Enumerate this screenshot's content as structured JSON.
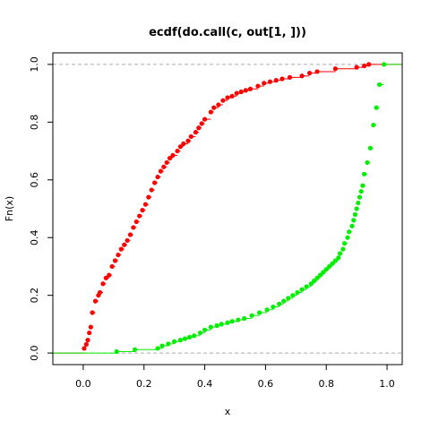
{
  "chart_data": {
    "type": "scatter",
    "title": "ecdf(do.call(c, out[1, ]))",
    "xlabel": "x",
    "ylabel": "Fn(x)",
    "xlim": [
      -0.1,
      1.05
    ],
    "ylim": [
      -0.04,
      1.04
    ],
    "xticks": [
      "0.0",
      "0.2",
      "0.4",
      "0.6",
      "0.8",
      "1.0"
    ],
    "yticks": [
      "0.0",
      "0.2",
      "0.4",
      "0.6",
      "0.8",
      "1.0"
    ],
    "reference_lines_y": [
      0,
      1
    ],
    "series": [
      {
        "color": "#ff0000",
        "points": [
          [
            0.003,
            0.016
          ],
          [
            0.01,
            0.03
          ],
          [
            0.015,
            0.045
          ],
          [
            0.02,
            0.07
          ],
          [
            0.025,
            0.09
          ],
          [
            0.03,
            0.14
          ],
          [
            0.04,
            0.18
          ],
          [
            0.05,
            0.2
          ],
          [
            0.055,
            0.21
          ],
          [
            0.065,
            0.24
          ],
          [
            0.075,
            0.26
          ],
          [
            0.085,
            0.27
          ],
          [
            0.095,
            0.3
          ],
          [
            0.105,
            0.32
          ],
          [
            0.115,
            0.34
          ],
          [
            0.125,
            0.36
          ],
          [
            0.135,
            0.375
          ],
          [
            0.145,
            0.39
          ],
          [
            0.155,
            0.41
          ],
          [
            0.165,
            0.435
          ],
          [
            0.175,
            0.455
          ],
          [
            0.185,
            0.475
          ],
          [
            0.195,
            0.495
          ],
          [
            0.205,
            0.515
          ],
          [
            0.215,
            0.54
          ],
          [
            0.225,
            0.565
          ],
          [
            0.235,
            0.59
          ],
          [
            0.245,
            0.61
          ],
          [
            0.255,
            0.63
          ],
          [
            0.265,
            0.645
          ],
          [
            0.275,
            0.66
          ],
          [
            0.285,
            0.675
          ],
          [
            0.295,
            0.685
          ],
          [
            0.31,
            0.7
          ],
          [
            0.32,
            0.715
          ],
          [
            0.33,
            0.725
          ],
          [
            0.345,
            0.735
          ],
          [
            0.355,
            0.75
          ],
          [
            0.37,
            0.765
          ],
          [
            0.38,
            0.78
          ],
          [
            0.39,
            0.795
          ],
          [
            0.4,
            0.81
          ],
          [
            0.42,
            0.835
          ],
          [
            0.43,
            0.85
          ],
          [
            0.445,
            0.86
          ],
          [
            0.46,
            0.875
          ],
          [
            0.475,
            0.885
          ],
          [
            0.49,
            0.89
          ],
          [
            0.505,
            0.9
          ],
          [
            0.52,
            0.905
          ],
          [
            0.535,
            0.91
          ],
          [
            0.55,
            0.915
          ],
          [
            0.575,
            0.925
          ],
          [
            0.595,
            0.935
          ],
          [
            0.615,
            0.94
          ],
          [
            0.635,
            0.945
          ],
          [
            0.655,
            0.95
          ],
          [
            0.68,
            0.955
          ],
          [
            0.72,
            0.96
          ],
          [
            0.745,
            0.97
          ],
          [
            0.77,
            0.975
          ],
          [
            0.83,
            0.985
          ],
          [
            0.9,
            0.99
          ],
          [
            0.925,
            0.995
          ],
          [
            0.94,
            1.0
          ]
        ]
      },
      {
        "color": "#00ee00",
        "points": [
          [
            0.11,
            0.005
          ],
          [
            0.17,
            0.012
          ],
          [
            0.245,
            0.016
          ],
          [
            0.26,
            0.025
          ],
          [
            0.28,
            0.032
          ],
          [
            0.3,
            0.04
          ],
          [
            0.32,
            0.045
          ],
          [
            0.335,
            0.05
          ],
          [
            0.35,
            0.055
          ],
          [
            0.365,
            0.06
          ],
          [
            0.385,
            0.07
          ],
          [
            0.4,
            0.08
          ],
          [
            0.42,
            0.09
          ],
          [
            0.44,
            0.095
          ],
          [
            0.455,
            0.1
          ],
          [
            0.475,
            0.105
          ],
          [
            0.49,
            0.11
          ],
          [
            0.51,
            0.115
          ],
          [
            0.53,
            0.12
          ],
          [
            0.555,
            0.13
          ],
          [
            0.58,
            0.14
          ],
          [
            0.605,
            0.15
          ],
          [
            0.625,
            0.16
          ],
          [
            0.645,
            0.17
          ],
          [
            0.66,
            0.18
          ],
          [
            0.675,
            0.19
          ],
          [
            0.69,
            0.2
          ],
          [
            0.705,
            0.21
          ],
          [
            0.72,
            0.22
          ],
          [
            0.735,
            0.23
          ],
          [
            0.75,
            0.24
          ],
          [
            0.76,
            0.25
          ],
          [
            0.77,
            0.26
          ],
          [
            0.78,
            0.27
          ],
          [
            0.79,
            0.28
          ],
          [
            0.8,
            0.29
          ],
          [
            0.81,
            0.3
          ],
          [
            0.82,
            0.31
          ],
          [
            0.83,
            0.32
          ],
          [
            0.84,
            0.33
          ],
          [
            0.845,
            0.345
          ],
          [
            0.855,
            0.36
          ],
          [
            0.86,
            0.38
          ],
          [
            0.87,
            0.4
          ],
          [
            0.875,
            0.42
          ],
          [
            0.885,
            0.44
          ],
          [
            0.89,
            0.46
          ],
          [
            0.895,
            0.48
          ],
          [
            0.9,
            0.5
          ],
          [
            0.905,
            0.52
          ],
          [
            0.91,
            0.54
          ],
          [
            0.915,
            0.56
          ],
          [
            0.92,
            0.58
          ],
          [
            0.925,
            0.62
          ],
          [
            0.935,
            0.66
          ],
          [
            0.945,
            0.71
          ],
          [
            0.955,
            0.79
          ],
          [
            0.965,
            0.85
          ],
          [
            0.975,
            0.93
          ],
          [
            0.99,
            1.0
          ]
        ]
      }
    ]
  }
}
